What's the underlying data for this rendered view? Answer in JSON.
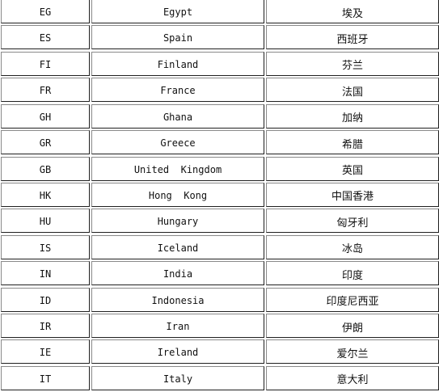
{
  "rows": [
    {
      "code": "EG",
      "english": "Egypt",
      "chinese": "埃及"
    },
    {
      "code": "ES",
      "english": "Spain",
      "chinese": "西班牙"
    },
    {
      "code": "FI",
      "english": "Finland",
      "chinese": "芬兰"
    },
    {
      "code": "FR",
      "english": "France",
      "chinese": "法国"
    },
    {
      "code": "GH",
      "english": "Ghana",
      "chinese": "加纳"
    },
    {
      "code": "GR",
      "english": "Greece",
      "chinese": "希腊"
    },
    {
      "code": "GB",
      "english": "United  Kingdom",
      "chinese": "英国"
    },
    {
      "code": "HK",
      "english": "Hong  Kong",
      "chinese": "中国香港"
    },
    {
      "code": "HU",
      "english": "Hungary",
      "chinese": "匈牙利"
    },
    {
      "code": "IS",
      "english": "Iceland",
      "chinese": "冰岛"
    },
    {
      "code": "IN",
      "english": "India",
      "chinese": "印度"
    },
    {
      "code": "ID",
      "english": "Indonesia",
      "chinese": "印度尼西亚"
    },
    {
      "code": "IR",
      "english": "Iran",
      "chinese": "伊朗"
    },
    {
      "code": "IE",
      "english": "Ireland",
      "chinese": "爱尔兰"
    },
    {
      "code": "IT",
      "english": "Italy",
      "chinese": "意大利"
    }
  ]
}
